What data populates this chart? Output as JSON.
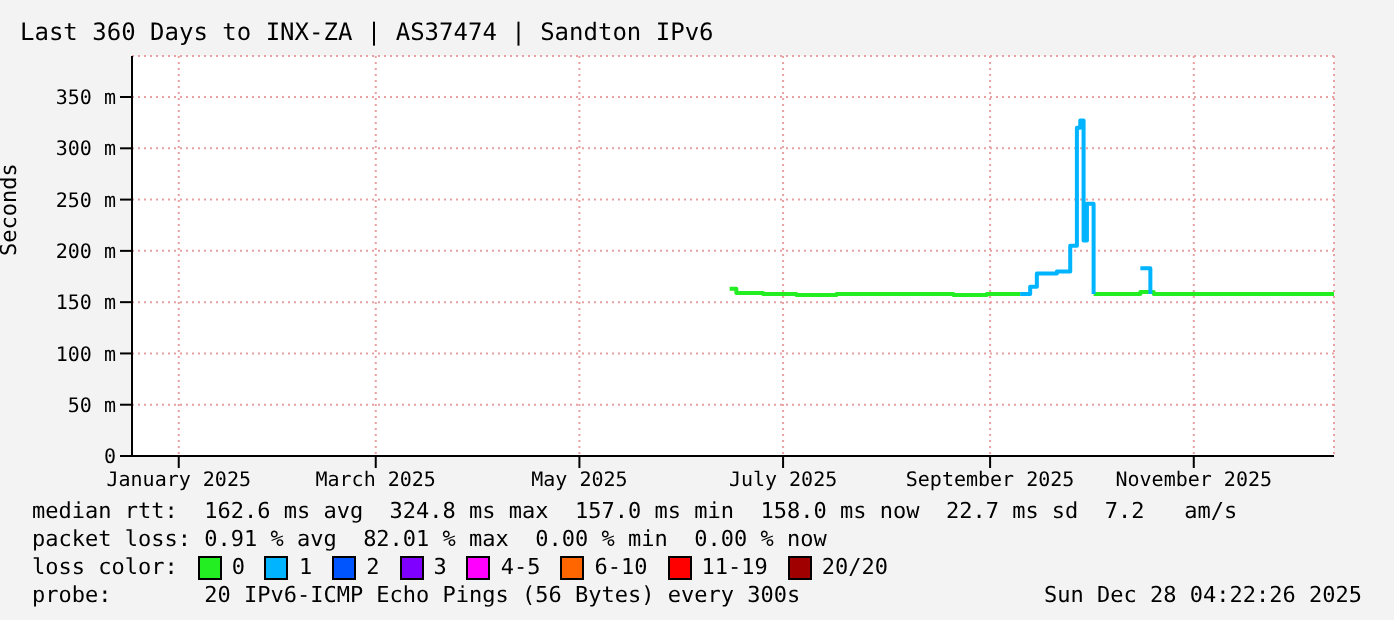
{
  "chart_data": {
    "type": "step",
    "title": "Last 360 Days to INX-ZA | AS37474 | Sandton IPv6",
    "ylabel": "Seconds",
    "xlim": [
      "2025-01-02",
      "2025-12-28"
    ],
    "xticks": [
      {
        "value": "2025-01-16",
        "label": "January 2025"
      },
      {
        "value": "2025-03-16",
        "label": "March 2025"
      },
      {
        "value": "2025-05-16",
        "label": "May 2025"
      },
      {
        "value": "2025-07-16",
        "label": "July 2025"
      },
      {
        "value": "2025-09-16",
        "label": "September 2025"
      },
      {
        "value": "2025-11-16",
        "label": "November 2025"
      }
    ],
    "ylim": [
      0,
      390
    ],
    "yticks": [
      0,
      {
        "value": 50,
        "label": "50 m"
      },
      {
        "value": 100,
        "label": "100 m"
      },
      {
        "value": 150,
        "label": "150 m"
      },
      {
        "value": 200,
        "label": "200 m"
      },
      {
        "value": 250,
        "label": "250 m"
      },
      {
        "value": 300,
        "label": "300 m"
      },
      {
        "value": 350,
        "label": "350 m"
      }
    ],
    "grid": true,
    "legend": "bottom",
    "series": [
      {
        "name": "0",
        "color": "#22ee22",
        "x": [
          "2025-06-30",
          "2025-07-02",
          "2025-07-10",
          "2025-07-20",
          "2025-08-01",
          "2025-08-15",
          "2025-08-25",
          "2025-09-05",
          "2025-09-15",
          "2025-09-25",
          "2025-09-28",
          "2025-10-17",
          "2025-10-25",
          "2025-10-31",
          "2025-11-04",
          "2025-11-20",
          "2025-12-05",
          "2025-12-28"
        ],
        "values": [
          163,
          159,
          158,
          157,
          158,
          158,
          158,
          157,
          158,
          158,
          null,
          158,
          158,
          160,
          158,
          158,
          158,
          158
        ]
      },
      {
        "name": "1",
        "color": "#00b4ff",
        "x": [
          "2025-09-25",
          "2025-09-28",
          "2025-09-30",
          "2025-10-06",
          "2025-10-10",
          "2025-10-12",
          "2025-10-13",
          "2025-10-14",
          "2025-10-15",
          "2025-10-16",
          "2025-10-17",
          "2025-10-25",
          "2025-10-31",
          "2025-11-02",
          "2025-11-03"
        ],
        "values": [
          158,
          165,
          178,
          180,
          205,
          320,
          327,
          210,
          246,
          246,
          158,
          null,
          183,
          183,
          158
        ]
      },
      {
        "name": "2",
        "color": "#0055ff"
      },
      {
        "name": "3",
        "color": "#8000ff"
      },
      {
        "name": "4-5",
        "color": "#ff00ff"
      },
      {
        "name": "6-10",
        "color": "#ff6600"
      },
      {
        "name": "11-19",
        "color": "#ff0000"
      },
      {
        "name": "20/20",
        "color": "#a00000"
      }
    ],
    "annotations": [
      "median rtt:  162.6 ms avg  324.8 ms max  157.0 ms min  158.0 ms now  22.7 ms sd  7.2   am/s",
      "packet loss: 0.91 % avg  82.01 % max  0.00 % min  0.00 % now",
      "loss color:",
      "probe:       20 IPv6-ICMP Echo Pings (56 Bytes) every 300s",
      "Sun Dec 28 04:22:26 2025"
    ]
  }
}
